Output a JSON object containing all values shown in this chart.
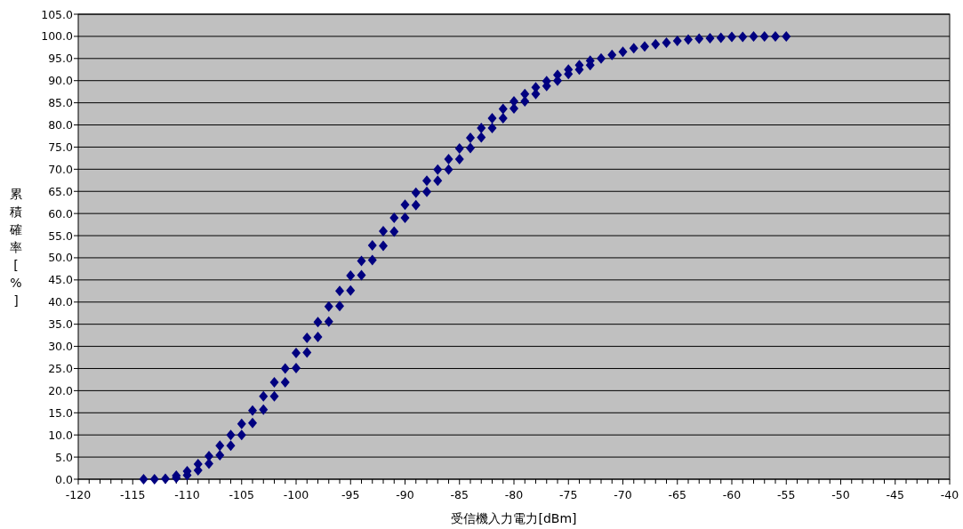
{
  "chart_data": {
    "type": "scatter",
    "xlabel": "受信機入力電力[dBm]",
    "ylabel": "累積確率[%]",
    "xlim": [
      -120,
      -40
    ],
    "ylim": [
      0,
      105
    ],
    "xticks": [
      -120,
      {
        "value": -119,
        "label": null
      },
      {
        "value": -118,
        "label": null
      },
      {
        "value": -117,
        "label": null
      },
      {
        "value": -116,
        "label": null
      },
      -115,
      {
        "value": -114,
        "label": null
      },
      {
        "value": -113,
        "label": null
      },
      {
        "value": -112,
        "label": null
      },
      {
        "value": -111,
        "label": null
      },
      -110,
      {
        "value": -109,
        "label": null
      },
      {
        "value": -108,
        "label": null
      },
      {
        "value": -107,
        "label": null
      },
      {
        "value": -106,
        "label": null
      },
      -105,
      {
        "value": -104,
        "label": null
      },
      {
        "value": -103,
        "label": null
      },
      {
        "value": -102,
        "label": null
      },
      {
        "value": -101,
        "label": null
      },
      -100,
      {
        "value": -99,
        "label": null
      },
      {
        "value": -98,
        "label": null
      },
      {
        "value": -97,
        "label": null
      },
      {
        "value": -96,
        "label": null
      },
      -95,
      {
        "value": -94,
        "label": null
      },
      {
        "value": -93,
        "label": null
      },
      {
        "value": -92,
        "label": null
      },
      {
        "value": -91,
        "label": null
      },
      -90,
      {
        "value": -89,
        "label": null
      },
      {
        "value": -88,
        "label": null
      },
      {
        "value": -87,
        "label": null
      },
      {
        "value": -86,
        "label": null
      },
      -85,
      {
        "value": -84,
        "label": null
      },
      {
        "value": -83,
        "label": null
      },
      {
        "value": -82,
        "label": null
      },
      {
        "value": -81,
        "label": null
      },
      -80,
      {
        "value": -79,
        "label": null
      },
      {
        "value": -78,
        "label": null
      },
      {
        "value": -77,
        "label": null
      },
      {
        "value": -76,
        "label": null
      },
      -75,
      {
        "value": -74,
        "label": null
      },
      {
        "value": -73,
        "label": null
      },
      {
        "value": -72,
        "label": null
      },
      {
        "value": -71,
        "label": null
      },
      -70,
      {
        "value": -69,
        "label": null
      },
      {
        "value": -68,
        "label": null
      },
      {
        "value": -67,
        "label": null
      },
      {
        "value": -66,
        "label": null
      },
      -65,
      {
        "value": -64,
        "label": null
      },
      {
        "value": -63,
        "label": null
      },
      {
        "value": -62,
        "label": null
      },
      {
        "value": -61,
        "label": null
      },
      -60,
      {
        "value": -59,
        "label": null
      },
      {
        "value": -58,
        "label": null
      },
      {
        "value": -57,
        "label": null
      },
      {
        "value": -56,
        "label": null
      },
      -55,
      {
        "value": -54,
        "label": null
      },
      {
        "value": -53,
        "label": null
      },
      {
        "value": -52,
        "label": null
      },
      {
        "value": -51,
        "label": null
      },
      -50,
      {
        "value": -49,
        "label": null
      },
      {
        "value": -48,
        "label": null
      },
      {
        "value": -47,
        "label": null
      },
      {
        "value": -46,
        "label": null
      },
      -45,
      {
        "value": -44,
        "label": null
      },
      {
        "value": -43,
        "label": null
      },
      {
        "value": -42,
        "label": null
      },
      {
        "value": -41,
        "label": null
      },
      -40
    ],
    "yticks": [
      {
        "value": 0,
        "label": "0.0"
      },
      {
        "value": 5,
        "label": "5.0"
      },
      {
        "value": 10,
        "label": "10.0"
      },
      {
        "value": 15,
        "label": "15.0"
      },
      {
        "value": 20,
        "label": "20.0"
      },
      {
        "value": 25,
        "label": "25.0"
      },
      {
        "value": 30,
        "label": "30.0"
      },
      {
        "value": 35,
        "label": "35.0"
      },
      {
        "value": 40,
        "label": "40.0"
      },
      {
        "value": 45,
        "label": "45.0"
      },
      {
        "value": 50,
        "label": "50.0"
      },
      {
        "value": 55,
        "label": "55.0"
      },
      {
        "value": 60,
        "label": "60.0"
      },
      {
        "value": 65,
        "label": "65.0"
      },
      {
        "value": 70,
        "label": "70.0"
      },
      {
        "value": 75,
        "label": "75.0"
      },
      {
        "value": 80,
        "label": "80.0"
      },
      {
        "value": 85,
        "label": "85.0"
      },
      {
        "value": 90,
        "label": "90.0"
      },
      {
        "value": 95,
        "label": "95.0"
      },
      {
        "value": 100,
        "label": "100.0"
      },
      {
        "value": 105,
        "label": "105.0"
      }
    ],
    "grid": "y",
    "marker": "diamond",
    "series": [
      {
        "color": "#000080",
        "x": [
          -114,
          -113,
          -112,
          -111,
          -111,
          -110,
          -110,
          -109,
          -109,
          -108,
          -108,
          -107,
          -107,
          -106,
          -106,
          -105,
          -105,
          -104,
          -104,
          -103,
          -103,
          -102,
          -102,
          -101,
          -101,
          -100,
          -100,
          -99,
          -99,
          -98,
          -98,
          -97,
          -97,
          -96,
          -96,
          -95,
          -95,
          -94,
          -94,
          -93,
          -93,
          -92,
          -92,
          -91,
          -91,
          -90,
          -90,
          -89,
          -89,
          -88,
          -88,
          -87,
          -87,
          -86,
          -86,
          -85,
          -85,
          -84,
          -84,
          -83,
          -83,
          -82,
          -82,
          -81,
          -81,
          -80,
          -80,
          -79,
          -79,
          -78,
          -78,
          -77,
          -77,
          -76,
          -76,
          -75,
          -75,
          -74,
          -74,
          -73,
          -73,
          -72,
          -71,
          -70,
          -69,
          -68,
          -67,
          -66,
          -65,
          -64,
          -63,
          -62,
          -61,
          -60,
          -59,
          -58,
          -57,
          -56,
          -55
        ],
        "values": [
          0.0,
          0.0,
          0.1,
          0.3,
          0.8,
          0.9,
          1.8,
          2.0,
          3.4,
          3.5,
          5.2,
          5.4,
          7.6,
          7.6,
          10.0,
          10.0,
          12.5,
          12.7,
          15.5,
          15.7,
          18.7,
          18.7,
          21.9,
          21.9,
          25.0,
          25.1,
          28.5,
          28.6,
          31.9,
          32.1,
          35.5,
          35.6,
          39.0,
          39.1,
          42.5,
          42.6,
          46.0,
          46.1,
          49.3,
          49.5,
          52.8,
          52.7,
          56.0,
          55.9,
          59.0,
          59.0,
          62.0,
          61.9,
          64.7,
          64.9,
          67.4,
          67.4,
          69.9,
          69.9,
          72.3,
          72.3,
          74.7,
          74.8,
          77.1,
          77.2,
          79.3,
          79.3,
          81.5,
          81.5,
          83.6,
          83.7,
          85.3,
          85.3,
          87.0,
          87.0,
          88.5,
          88.8,
          89.9,
          90.0,
          91.3,
          91.5,
          92.5,
          92.5,
          93.5,
          93.5,
          94.5,
          95.0,
          95.8,
          96.5,
          97.3,
          97.7,
          98.2,
          98.6,
          99.0,
          99.3,
          99.5,
          99.6,
          99.7,
          99.9,
          99.9,
          100,
          100,
          100,
          100
        ]
      }
    ]
  }
}
